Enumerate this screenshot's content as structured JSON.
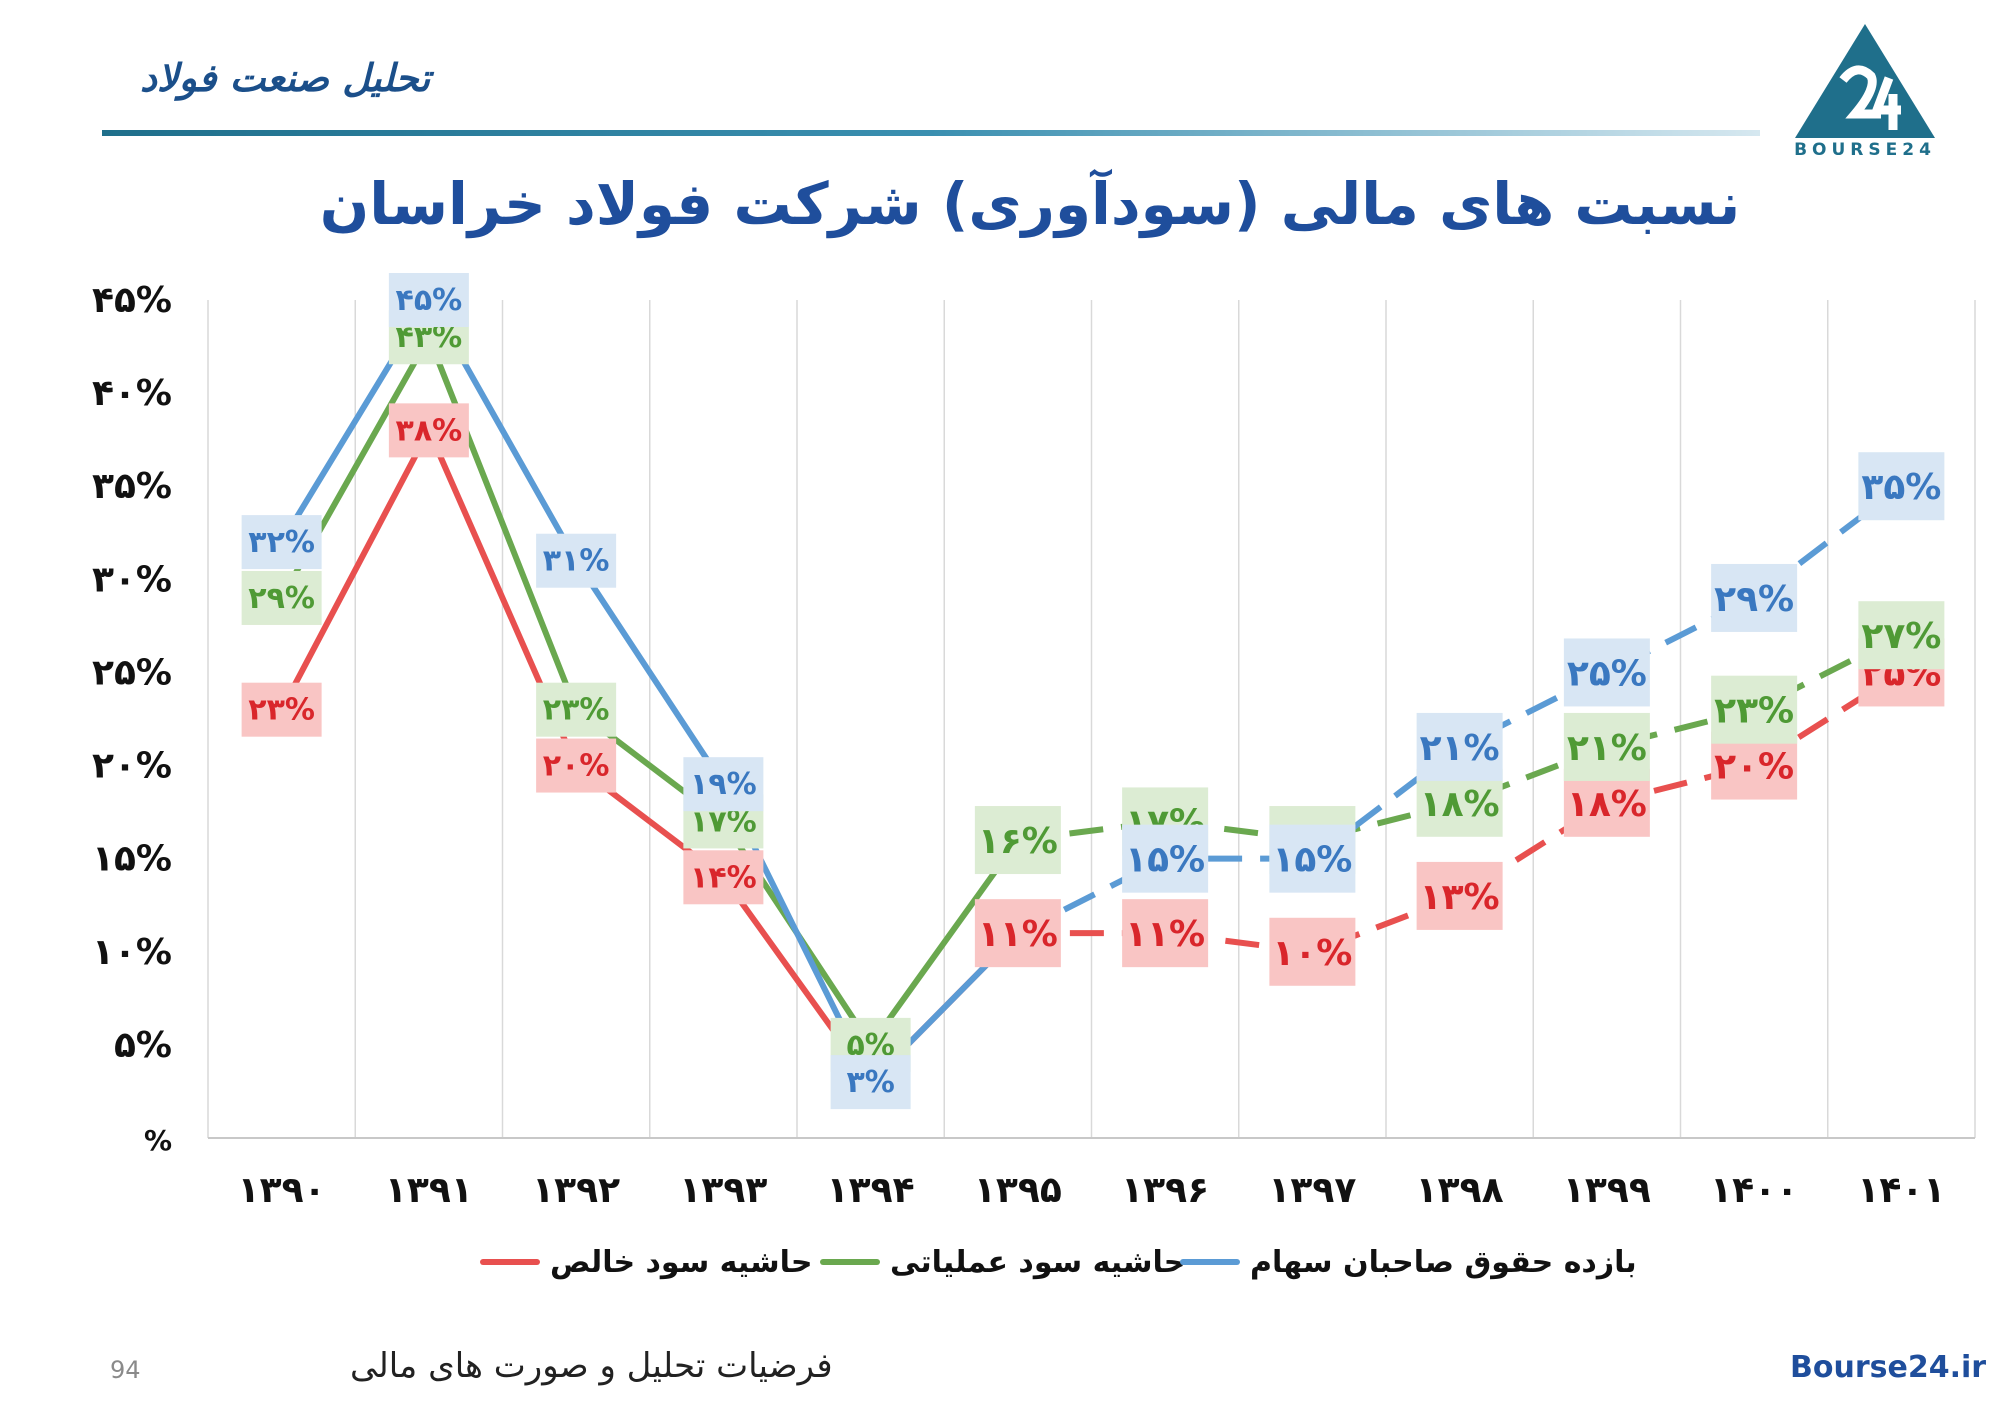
{
  "header": {
    "title": "تحلیل صنعت فولاد",
    "logo_text": "BOURSE24"
  },
  "footer": {
    "page_number": "94",
    "caption": "فرضیات تحلیل و صورت های مالی",
    "site": "Bourse24.ir"
  },
  "colors": {
    "net_margin": "#e8504f",
    "operating_margin": "#6aa84f",
    "roe": "#5b9bd5",
    "title": "#1f4e9c"
  },
  "chart_data": {
    "type": "line",
    "title": "نسبت های مالی (سودآوری) شرکت فولاد خراسان",
    "categories": [
      "۱۳۹۰",
      "۱۳۹۱",
      "۱۳۹۲",
      "۱۳۹۳",
      "۱۳۹۴",
      "۱۳۹۵",
      "۱۳۹۶",
      "۱۳۹۷",
      "۱۳۹۸",
      "۱۳۹۹",
      "۱۴۰۰",
      "۱۴۰۱"
    ],
    "y_ticks": [
      "%",
      "۵%",
      "۱۰%",
      "۱۵%",
      "۲۰%",
      "۲۵%",
      "۳۰%",
      "۳۵%",
      "۴۰%",
      "۴۵%"
    ],
    "ylim": [
      0,
      45
    ],
    "forecast_start_index": 5,
    "grid": "vertical",
    "legend_position": "bottom",
    "series": [
      {
        "key": "net_margin",
        "name": "حاشیه سود خالص",
        "values": [
          23,
          38,
          20,
          14,
          3,
          11,
          11,
          10,
          13,
          18,
          20,
          25
        ],
        "labels": [
          "۲۳%",
          "۳۸%",
          "۲۰%",
          "۱۴%",
          "",
          "۱۱%",
          "۱۱%",
          "۱۰%",
          "۱۳%",
          "۱۸%",
          "۲۰%",
          "۲۵%"
        ]
      },
      {
        "key": "operating_margin",
        "name": "حاشیه سود عملیاتی",
        "values": [
          29,
          43,
          23,
          17,
          5,
          16,
          17,
          16,
          18,
          21,
          23,
          27
        ],
        "labels": [
          "۲۹%",
          "۴۳%",
          "۲۳%",
          "۱۷%",
          "۵%",
          "۱۶%",
          "۱۷%",
          "۱۶%",
          "۱۸%",
          "۲۱%",
          "۲۳%",
          "۲۷%"
        ]
      },
      {
        "key": "roe",
        "name": "بازده حقوق صاحبان سهام",
        "values": [
          32,
          45,
          31,
          19,
          3,
          11,
          15,
          15,
          21,
          25,
          29,
          35
        ],
        "labels": [
          "۳۲%",
          "۴۵%",
          "۳۱%",
          "۱۹%",
          "۳%",
          "",
          "۱۵%",
          "۱۵%",
          "۲۱%",
          "۲۵%",
          "۲۹%",
          "۳۵%"
        ]
      }
    ]
  }
}
